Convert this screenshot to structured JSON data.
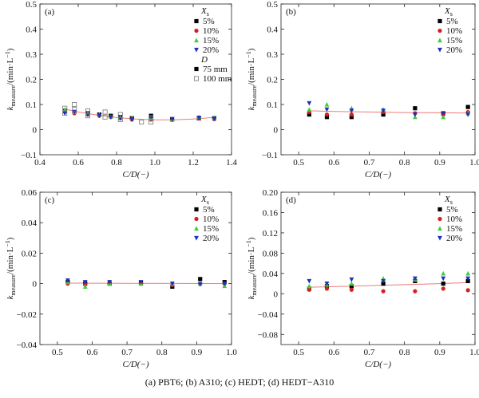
{
  "caption": "(a) PBT6; (b) A310; (c) HEDT; (d) HEDT−A310",
  "series_colors": {
    "5%": "#000000",
    "10%": "#d62020",
    "15%": "#3ccf3c",
    "20%": "#1f2fbf",
    "75 mm": "#000000",
    "100 mm": "#777777"
  },
  "fit_color": "#f07a7a",
  "chart_data": [
    {
      "panel": "(a)",
      "type": "scatter",
      "xlabel": "C/D(−)",
      "ylabel_main": "k",
      "ylabel_sub": "measure",
      "ylabel_unit": "/(min·L",
      "ylabel_exp": "−1",
      "ylabel_end": ")",
      "xlim": [
        0.4,
        1.4
      ],
      "ylim": [
        -0.1,
        0.5
      ],
      "xticks": [
        "0.4",
        "0.6",
        "0.8",
        "1.0",
        "1.2",
        "1.4"
      ],
      "yticks": [
        "−0.1",
        "0",
        "0.1",
        "0.2",
        "0.3",
        "0.4",
        "0.5"
      ],
      "legend_title": "X",
      "legend_title_sub": "s",
      "legend": [
        "5%",
        "10%",
        "15%",
        "20%"
      ],
      "legend2_title": "D",
      "legend2": [
        "75 mm",
        "100 mm"
      ],
      "fit": [
        [
          0.53,
          0.082
        ],
        [
          0.6,
          0.07
        ],
        [
          0.7,
          0.058
        ],
        [
          0.8,
          0.048
        ],
        [
          0.9,
          0.042
        ],
        [
          1.0,
          0.039
        ],
        [
          1.1,
          0.039
        ],
        [
          1.2,
          0.042
        ],
        [
          1.3,
          0.048
        ]
      ],
      "series": [
        {
          "name": "5%",
          "x": [
            0.53,
            0.58,
            0.65,
            0.71,
            0.77,
            0.82,
            0.88,
            0.98,
            1.09,
            1.23,
            1.31
          ],
          "y": [
            0.075,
            0.07,
            0.065,
            0.06,
            0.055,
            0.05,
            0.045,
            0.055,
            0.04,
            0.045,
            0.045
          ]
        },
        {
          "name": "10%",
          "x": [
            0.53,
            0.58,
            0.65,
            0.71,
            0.77,
            0.82,
            0.88,
            0.98,
            1.09,
            1.23,
            1.31
          ],
          "y": [
            0.07,
            0.065,
            0.06,
            0.055,
            0.05,
            0.045,
            0.04,
            0.04,
            0.038,
            0.045,
            0.042
          ]
        },
        {
          "name": "15%",
          "x": [
            0.53,
            0.58,
            0.65,
            0.71,
            0.77,
            0.82,
            0.88,
            0.98,
            1.09,
            1.23,
            1.31
          ],
          "y": [
            0.08,
            0.07,
            0.065,
            0.06,
            0.052,
            0.05,
            0.045,
            0.045,
            0.04,
            0.05,
            0.047
          ]
        },
        {
          "name": "20%",
          "x": [
            0.53,
            0.58,
            0.65,
            0.71,
            0.77,
            0.82,
            0.88,
            0.98,
            1.09,
            1.23,
            1.31
          ],
          "y": [
            0.065,
            0.07,
            0.06,
            0.055,
            0.05,
            0.045,
            0.04,
            0.05,
            0.042,
            0.047,
            0.043
          ]
        },
        {
          "name": "100 mm",
          "hollow": true,
          "x": [
            0.53,
            0.53,
            0.58,
            0.58,
            0.65,
            0.65,
            0.74,
            0.74,
            0.82,
            0.82,
            0.93,
            0.98,
            0.98
          ],
          "y": [
            0.085,
            0.065,
            0.1,
            0.08,
            0.075,
            0.055,
            0.07,
            0.05,
            0.06,
            0.04,
            0.03,
            0.045,
            0.03
          ]
        }
      ]
    },
    {
      "panel": "(b)",
      "type": "scatter",
      "xlabel": "C/D(−)",
      "ylabel_main": "k",
      "ylabel_sub": "measure",
      "ylabel_unit": "/(min·L",
      "ylabel_exp": "−1",
      "ylabel_end": ")",
      "xlim": [
        0.45,
        1.0
      ],
      "ylim": [
        -0.1,
        0.5
      ],
      "xticks": [
        "0.5",
        "0.6",
        "0.7",
        "0.8",
        "0.9",
        "1.0"
      ],
      "yticks": [
        "−0.1",
        "0",
        "0.1",
        "0.2",
        "0.3",
        "0.4",
        "0.5"
      ],
      "legend_title": "X",
      "legend_title_sub": "s",
      "legend": [
        "5%",
        "10%",
        "15%",
        "20%"
      ],
      "fit": [
        [
          0.53,
          0.075
        ],
        [
          0.6,
          0.072
        ],
        [
          0.7,
          0.07
        ],
        [
          0.8,
          0.068
        ],
        [
          0.9,
          0.067
        ],
        [
          0.98,
          0.066
        ]
      ],
      "series": [
        {
          "name": "5%",
          "x": [
            0.53,
            0.58,
            0.65,
            0.74,
            0.83,
            0.91,
            0.98
          ],
          "y": [
            0.06,
            0.05,
            0.05,
            0.06,
            0.085,
            0.065,
            0.09
          ]
        },
        {
          "name": "10%",
          "x": [
            0.53,
            0.58,
            0.65,
            0.74,
            0.83,
            0.91,
            0.98
          ],
          "y": [
            0.07,
            0.06,
            0.06,
            0.07,
            0.065,
            0.06,
            0.07
          ]
        },
        {
          "name": "15%",
          "x": [
            0.53,
            0.58,
            0.65,
            0.74,
            0.83,
            0.91,
            0.98
          ],
          "y": [
            0.08,
            0.1,
            0.085,
            0.08,
            0.05,
            0.05,
            0.065
          ]
        },
        {
          "name": "20%",
          "x": [
            0.53,
            0.58,
            0.65,
            0.74,
            0.83,
            0.91,
            0.98
          ],
          "y": [
            0.105,
            0.08,
            0.075,
            0.075,
            0.06,
            0.065,
            0.06
          ]
        }
      ]
    },
    {
      "panel": "(c)",
      "type": "scatter",
      "xlabel": "C/D(−)",
      "ylabel_main": "k",
      "ylabel_sub": "measure",
      "ylabel_unit": "/(min·L",
      "ylabel_exp": "−1",
      "ylabel_end": ")",
      "xlim": [
        0.45,
        1.0
      ],
      "ylim": [
        -0.04,
        0.06
      ],
      "xticks": [
        "0.5",
        "0.6",
        "0.7",
        "0.8",
        "0.9",
        "1.0"
      ],
      "yticks": [
        "−0.04",
        "−0.02",
        "0",
        "0.02",
        "0.04",
        "0.06"
      ],
      "legend_title": "X",
      "legend_title_sub": "s",
      "legend": [
        "5%",
        "10%",
        "15%",
        "20%"
      ],
      "fit": [
        [
          0.53,
          0.0003
        ],
        [
          0.7,
          0.0002
        ],
        [
          0.85,
          0.0001
        ],
        [
          0.98,
          0.0
        ]
      ],
      "series": [
        {
          "name": "5%",
          "x": [
            0.53,
            0.58,
            0.65,
            0.74,
            0.83,
            0.91,
            0.98
          ],
          "y": [
            0.001,
            0.0,
            0.0,
            0.0005,
            -0.002,
            0.003,
            0.001
          ]
        },
        {
          "name": "10%",
          "x": [
            0.53,
            0.58,
            0.65,
            0.74,
            0.83,
            0.91,
            0.98
          ],
          "y": [
            0.0,
            -0.0005,
            0.0,
            0.0,
            -0.001,
            0.0,
            0.0
          ]
        },
        {
          "name": "15%",
          "x": [
            0.53,
            0.58,
            0.65,
            0.74,
            0.83,
            0.91,
            0.98
          ],
          "y": [
            0.001,
            -0.002,
            0.0,
            0.0,
            0.0,
            0.0,
            -0.0015
          ]
        },
        {
          "name": "20%",
          "x": [
            0.53,
            0.58,
            0.65,
            0.74,
            0.83,
            0.91,
            0.98
          ],
          "y": [
            0.002,
            0.001,
            0.001,
            0.001,
            0.0,
            -0.0005,
            0.0
          ]
        }
      ]
    },
    {
      "panel": "(d)",
      "type": "scatter",
      "xlabel": "C/D(−)",
      "ylabel_main": "k",
      "ylabel_sub": "measure",
      "ylabel_unit": "/(min·L",
      "ylabel_exp": "−1",
      "ylabel_end": ")",
      "xlim": [
        0.45,
        1.0
      ],
      "ylim": [
        -0.1,
        0.2
      ],
      "xticks": [
        "0.5",
        "0.6",
        "0.7",
        "0.8",
        "0.9",
        "1.0"
      ],
      "yticks": [
        "−0.08",
        "−0.04",
        "0",
        "0.04",
        "0.08",
        "0.12",
        "0.16",
        "0.20"
      ],
      "ytick_values": [
        -0.08,
        -0.04,
        0,
        0.04,
        0.08,
        0.12,
        0.16,
        0.2
      ],
      "legend_title": "X",
      "legend_title_sub": "s",
      "legend": [
        "5%",
        "10%",
        "15%",
        "20%"
      ],
      "fit": [
        [
          0.53,
          0.013
        ],
        [
          0.6,
          0.014
        ],
        [
          0.7,
          0.016
        ],
        [
          0.8,
          0.018
        ],
        [
          0.9,
          0.02
        ],
        [
          0.98,
          0.022
        ]
      ],
      "series": [
        {
          "name": "5%",
          "x": [
            0.53,
            0.58,
            0.65,
            0.74,
            0.83,
            0.91,
            0.98
          ],
          "y": [
            0.01,
            0.015,
            0.015,
            0.02,
            0.025,
            0.02,
            0.025
          ]
        },
        {
          "name": "10%",
          "x": [
            0.53,
            0.58,
            0.65,
            0.74,
            0.83,
            0.91,
            0.98
          ],
          "y": [
            0.008,
            0.01,
            0.008,
            0.005,
            0.005,
            0.01,
            0.007
          ]
        },
        {
          "name": "15%",
          "x": [
            0.53,
            0.58,
            0.65,
            0.74,
            0.83,
            0.91,
            0.98
          ],
          "y": [
            0.015,
            0.018,
            0.02,
            0.03,
            0.028,
            0.04,
            0.04
          ]
        },
        {
          "name": "20%",
          "x": [
            0.53,
            0.58,
            0.65,
            0.74,
            0.83,
            0.91,
            0.98
          ],
          "y": [
            0.025,
            0.02,
            0.028,
            0.025,
            0.03,
            0.03,
            0.03
          ]
        }
      ]
    }
  ]
}
